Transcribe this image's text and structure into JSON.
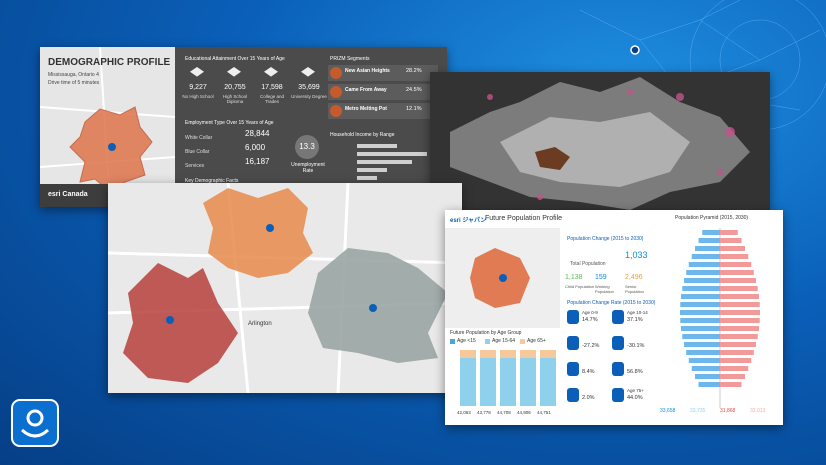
{
  "demographic": {
    "title": "DEMOGRAPHIC PROFILE",
    "location": "Mississauga, Ontario 4",
    "drive_time": "Drive time of 5 minutes",
    "education": {
      "title": "Educational Attainment Over 15 Years of Age",
      "items": [
        {
          "value": "9,227",
          "label": "No High School"
        },
        {
          "value": "20,755",
          "label": "High School Diploma"
        },
        {
          "value": "17,598",
          "label": "College and Trades"
        },
        {
          "value": "35,699",
          "label": "University Degree"
        }
      ]
    },
    "employment": {
      "title": "Employment Type Over 15 Years of Age",
      "items": [
        {
          "label": "White Collar",
          "value": "28,844"
        },
        {
          "label": "Blue Collar",
          "value": "6,000"
        },
        {
          "label": "Services",
          "value": "16,187"
        }
      ],
      "rate": {
        "value": "13.3",
        "label": "Unemployment Rate"
      }
    },
    "key_facts": "Key Demographic Facts",
    "prizm": {
      "title": "PRIZM Segments",
      "items": [
        {
          "name": "New Asian Heights",
          "pct": "28.2%"
        },
        {
          "name": "Came From Away",
          "pct": "24.5%"
        },
        {
          "name": "Metro Melting Pot",
          "pct": "12.1%"
        }
      ]
    },
    "income_title": "Household Income by Range",
    "brand": "esri Canada"
  },
  "light_map": {
    "label": "Arlington"
  },
  "future": {
    "brand": "esri ジャパン",
    "title": "Future Population Profile",
    "age_group": {
      "title": "Future Population by Age Group",
      "legend": [
        {
          "name": "Age <15",
          "color": "#4aa8d8"
        },
        {
          "name": "Age 15-64",
          "color": "#8fd1ec"
        },
        {
          "name": "Age 65+",
          "color": "#f7c89b"
        }
      ],
      "totals": [
        "42,063",
        "43,778",
        "44,708",
        "44,906",
        "44,751"
      ]
    },
    "change": {
      "title": "Population Change (2015 to 2030)",
      "total": {
        "value": "1,033",
        "label": "Total Population"
      },
      "groups": [
        {
          "value": "1,138",
          "label": "Child Population"
        },
        {
          "value": "159",
          "label": "Working Population"
        },
        {
          "value": "2,496",
          "label": "Senior Population"
        }
      ]
    },
    "rates": {
      "title": "Population Change Rate (2015 to 2030)",
      "items": [
        {
          "label": "Age 0-9",
          "value": "14.7%"
        },
        {
          "label": "Age 10-14",
          "value": "37.1%"
        },
        {
          "label": "",
          "value": "-27.2%"
        },
        {
          "label": "",
          "value": "-30.1%"
        },
        {
          "label": "",
          "value": "8.4%"
        },
        {
          "label": "",
          "value": "56.8%"
        },
        {
          "label": "",
          "value": "2.0%"
        },
        {
          "label": "Age 75+",
          "value": "44.0%"
        }
      ]
    },
    "pyramid": {
      "title": "Population Pyramid (2015, 2030)",
      "totals": [
        "33,658",
        "33,735",
        "31,868",
        "33,013"
      ]
    }
  }
}
